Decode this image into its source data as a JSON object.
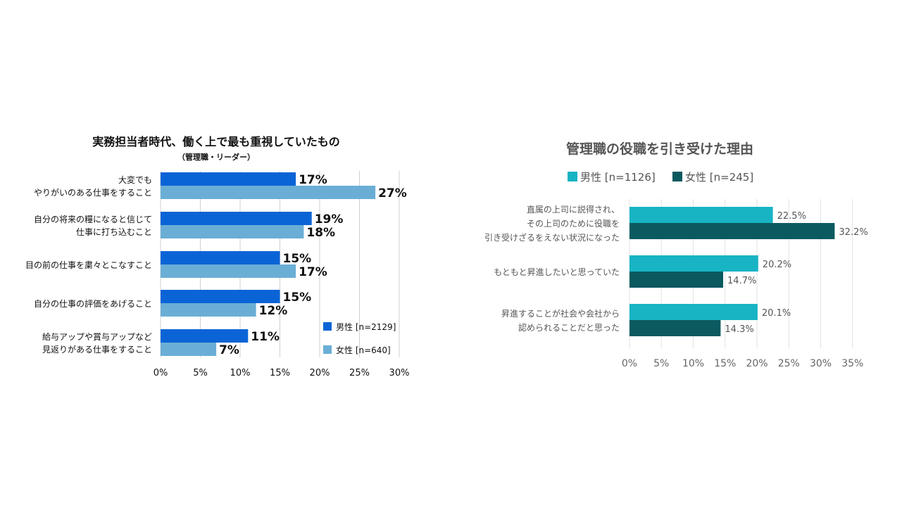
{
  "chart_data": [
    {
      "type": "bar",
      "orientation": "horizontal",
      "title": "実務担当者時代、働く上で最も重視していたもの",
      "subtitle": "（管理職・リーダー）",
      "categories": [
        [
          "大変でも",
          "やりがいのある仕事をすること"
        ],
        [
          "自分の将来の糧になると信じて",
          "仕事に打ち込むこと"
        ],
        [
          "目の前の仕事を粛々とこなすこと"
        ],
        [
          "自分の仕事の評価をあげること"
        ],
        [
          "給与アップや賞与アップなど",
          "見返りがある仕事をすること"
        ]
      ],
      "series": [
        {
          "name": "男性 [n=2129]",
          "color": "#0b64d6",
          "values": [
            17,
            19,
            15,
            15,
            11
          ],
          "labels": [
            "17%",
            "19%",
            "15%",
            "15%",
            "11%"
          ]
        },
        {
          "name": "女性 [n=640]",
          "color": "#6aaed6",
          "values": [
            27,
            18,
            17,
            12,
            7
          ],
          "labels": [
            "27%",
            "18%",
            "17%",
            "12%",
            "7%"
          ]
        }
      ],
      "xlim": [
        0,
        30
      ],
      "xticks": [
        "0%",
        "5%",
        "10%",
        "15%",
        "20%",
        "25%",
        "30%"
      ],
      "grid": true,
      "legend": "bottom-right"
    },
    {
      "type": "bar",
      "orientation": "horizontal",
      "title": "管理職の役職を引き受けた理由",
      "categories": [
        [
          "直属の上司に説得され、",
          "その上司のために役職を",
          "引き受けざるをえない状況になった"
        ],
        [
          "もともと昇進したいと思っていた"
        ],
        [
          "昇進することが社会や会社から",
          "認められることだと思った"
        ]
      ],
      "series": [
        {
          "name": "男性 [n=1126]",
          "color": "#18b4c4",
          "values": [
            22.5,
            20.2,
            20.1
          ],
          "labels": [
            "22.5%",
            "20.2%",
            "20.1%"
          ]
        },
        {
          "name": "女性 [n=245]",
          "color": "#0b5a60",
          "values": [
            32.2,
            14.7,
            14.3
          ],
          "labels": [
            "32.2%",
            "14.7%",
            "14.3%"
          ]
        }
      ],
      "xlim": [
        0,
        35
      ],
      "xticks": [
        "0%",
        "5%",
        "10%",
        "15%",
        "20%",
        "25%",
        "30%",
        "35%"
      ],
      "grid": true,
      "legend": "top"
    }
  ]
}
